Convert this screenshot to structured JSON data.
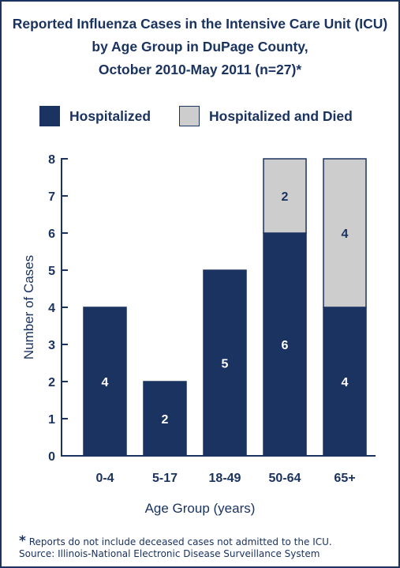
{
  "chart_data": {
    "type": "bar",
    "stacked": true,
    "title_lines": [
      "Reported Influenza Cases in the Intensive Care Unit (ICU)",
      "by Age Group in DuPage County,",
      "October 2010-May 2011 (n=27)*"
    ],
    "xlabel": "Age Group (years)",
    "ylabel": "Number of Cases",
    "ylim": [
      0,
      8
    ],
    "yticks": [
      "0",
      "1",
      "2",
      "3",
      "4",
      "5",
      "6",
      "7",
      "8"
    ],
    "categories": [
      "0-4",
      "5-17",
      "18-49",
      "50-64",
      "65+"
    ],
    "series": [
      {
        "name": "Hospitalized",
        "values": [
          4,
          2,
          5,
          6,
          4
        ],
        "color": "#1a3360",
        "label_color": "#ffffff"
      },
      {
        "name": "Hospitalized and Died",
        "values": [
          0,
          0,
          0,
          2,
          4
        ],
        "color": "#cdcdcd",
        "label_color": "#1a3360"
      }
    ],
    "legend_position": "top",
    "grid": false
  },
  "footnote": {
    "star": "*",
    "note": " Reports do not include deceased cases not admitted to the ICU.",
    "source": "Source:  Illinois-National Electronic Disease Surveillance System"
  },
  "colors": {
    "primary": "#1a3360",
    "died": "#cdcdcd",
    "background": "#ffffff"
  }
}
